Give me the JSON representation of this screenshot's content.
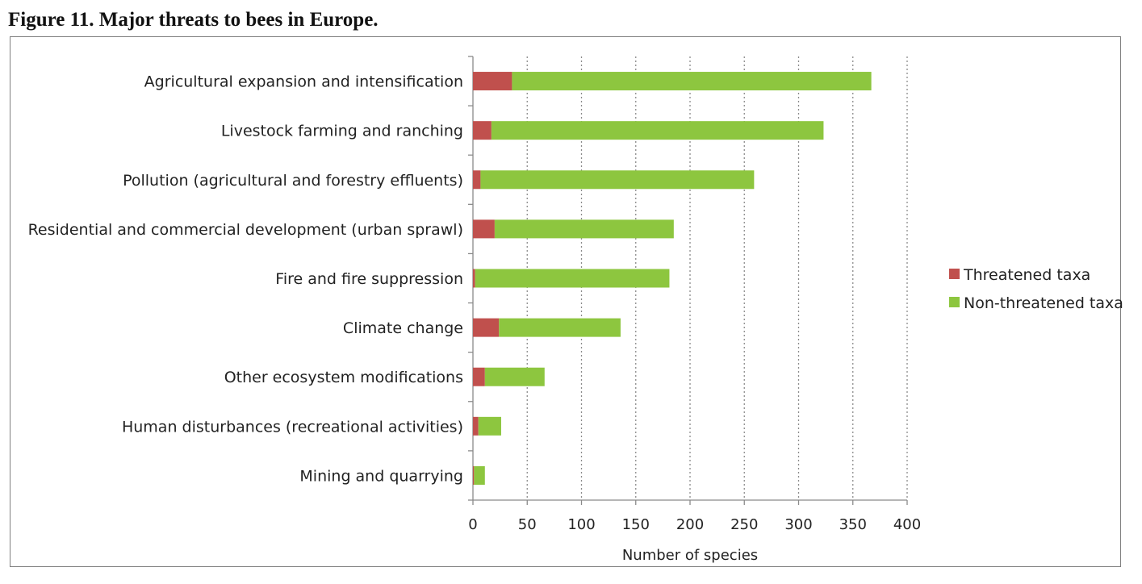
{
  "figure": {
    "title": "Figure 11. Major threats to bees in Europe."
  },
  "chart_data": {
    "type": "bar",
    "orientation": "horizontal",
    "stacked": true,
    "categories": [
      "Agricultural expansion and intensification",
      "Livestock farming and ranching",
      "Pollution (agricultural and forestry effluents)",
      "Residential and commercial development (urban sprawl)",
      "Fire and fire suppression",
      "Climate change",
      "Other ecosystem modifications",
      "Human disturbances (recreational activities)",
      "Mining and quarrying"
    ],
    "series": [
      {
        "name": "Threatened taxa",
        "color": "#c0504d",
        "values": [
          36,
          17,
          7,
          20,
          2,
          24,
          11,
          5,
          1
        ]
      },
      {
        "name": "Non-threatened taxa",
        "color": "#8dc63f",
        "values": [
          331,
          306,
          252,
          165,
          179,
          112,
          55,
          21,
          10
        ]
      }
    ],
    "xlabel": "Number of species",
    "ylabel": "",
    "xlim": [
      0,
      400
    ],
    "xticks": [
      "0",
      "50",
      "100",
      "150",
      "200",
      "250",
      "300",
      "350",
      "400"
    ],
    "grid": "vertical dotted",
    "legend_position": "right"
  }
}
